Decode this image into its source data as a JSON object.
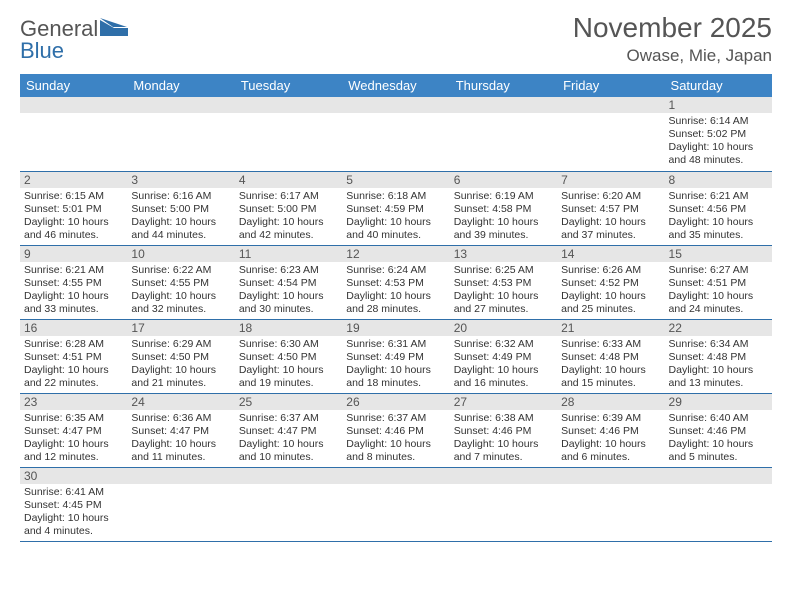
{
  "logo": {
    "word1": "General",
    "word2": "Blue",
    "flag_color": "#2f6fa9"
  },
  "header": {
    "title": "November 2025",
    "location": "Owase, Mie, Japan"
  },
  "colors": {
    "header_bg": "#3d84c5",
    "divider": "#2f6fa9",
    "daynum_bg": "#e6e6e6"
  },
  "weekdays": [
    "Sunday",
    "Monday",
    "Tuesday",
    "Wednesday",
    "Thursday",
    "Friday",
    "Saturday"
  ],
  "weeks": [
    [
      {
        "blank": true
      },
      {
        "blank": true
      },
      {
        "blank": true
      },
      {
        "blank": true
      },
      {
        "blank": true
      },
      {
        "blank": true
      },
      {
        "day": 1,
        "sunrise": "Sunrise: 6:14 AM",
        "sunset": "Sunset: 5:02 PM",
        "daylight": "Daylight: 10 hours and 48 minutes."
      }
    ],
    [
      {
        "day": 2,
        "sunrise": "Sunrise: 6:15 AM",
        "sunset": "Sunset: 5:01 PM",
        "daylight": "Daylight: 10 hours and 46 minutes."
      },
      {
        "day": 3,
        "sunrise": "Sunrise: 6:16 AM",
        "sunset": "Sunset: 5:00 PM",
        "daylight": "Daylight: 10 hours and 44 minutes."
      },
      {
        "day": 4,
        "sunrise": "Sunrise: 6:17 AM",
        "sunset": "Sunset: 5:00 PM",
        "daylight": "Daylight: 10 hours and 42 minutes."
      },
      {
        "day": 5,
        "sunrise": "Sunrise: 6:18 AM",
        "sunset": "Sunset: 4:59 PM",
        "daylight": "Daylight: 10 hours and 40 minutes."
      },
      {
        "day": 6,
        "sunrise": "Sunrise: 6:19 AM",
        "sunset": "Sunset: 4:58 PM",
        "daylight": "Daylight: 10 hours and 39 minutes."
      },
      {
        "day": 7,
        "sunrise": "Sunrise: 6:20 AM",
        "sunset": "Sunset: 4:57 PM",
        "daylight": "Daylight: 10 hours and 37 minutes."
      },
      {
        "day": 8,
        "sunrise": "Sunrise: 6:21 AM",
        "sunset": "Sunset: 4:56 PM",
        "daylight": "Daylight: 10 hours and 35 minutes."
      }
    ],
    [
      {
        "day": 9,
        "sunrise": "Sunrise: 6:21 AM",
        "sunset": "Sunset: 4:55 PM",
        "daylight": "Daylight: 10 hours and 33 minutes."
      },
      {
        "day": 10,
        "sunrise": "Sunrise: 6:22 AM",
        "sunset": "Sunset: 4:55 PM",
        "daylight": "Daylight: 10 hours and 32 minutes."
      },
      {
        "day": 11,
        "sunrise": "Sunrise: 6:23 AM",
        "sunset": "Sunset: 4:54 PM",
        "daylight": "Daylight: 10 hours and 30 minutes."
      },
      {
        "day": 12,
        "sunrise": "Sunrise: 6:24 AM",
        "sunset": "Sunset: 4:53 PM",
        "daylight": "Daylight: 10 hours and 28 minutes."
      },
      {
        "day": 13,
        "sunrise": "Sunrise: 6:25 AM",
        "sunset": "Sunset: 4:53 PM",
        "daylight": "Daylight: 10 hours and 27 minutes."
      },
      {
        "day": 14,
        "sunrise": "Sunrise: 6:26 AM",
        "sunset": "Sunset: 4:52 PM",
        "daylight": "Daylight: 10 hours and 25 minutes."
      },
      {
        "day": 15,
        "sunrise": "Sunrise: 6:27 AM",
        "sunset": "Sunset: 4:51 PM",
        "daylight": "Daylight: 10 hours and 24 minutes."
      }
    ],
    [
      {
        "day": 16,
        "sunrise": "Sunrise: 6:28 AM",
        "sunset": "Sunset: 4:51 PM",
        "daylight": "Daylight: 10 hours and 22 minutes."
      },
      {
        "day": 17,
        "sunrise": "Sunrise: 6:29 AM",
        "sunset": "Sunset: 4:50 PM",
        "daylight": "Daylight: 10 hours and 21 minutes."
      },
      {
        "day": 18,
        "sunrise": "Sunrise: 6:30 AM",
        "sunset": "Sunset: 4:50 PM",
        "daylight": "Daylight: 10 hours and 19 minutes."
      },
      {
        "day": 19,
        "sunrise": "Sunrise: 6:31 AM",
        "sunset": "Sunset: 4:49 PM",
        "daylight": "Daylight: 10 hours and 18 minutes."
      },
      {
        "day": 20,
        "sunrise": "Sunrise: 6:32 AM",
        "sunset": "Sunset: 4:49 PM",
        "daylight": "Daylight: 10 hours and 16 minutes."
      },
      {
        "day": 21,
        "sunrise": "Sunrise: 6:33 AM",
        "sunset": "Sunset: 4:48 PM",
        "daylight": "Daylight: 10 hours and 15 minutes."
      },
      {
        "day": 22,
        "sunrise": "Sunrise: 6:34 AM",
        "sunset": "Sunset: 4:48 PM",
        "daylight": "Daylight: 10 hours and 13 minutes."
      }
    ],
    [
      {
        "day": 23,
        "sunrise": "Sunrise: 6:35 AM",
        "sunset": "Sunset: 4:47 PM",
        "daylight": "Daylight: 10 hours and 12 minutes."
      },
      {
        "day": 24,
        "sunrise": "Sunrise: 6:36 AM",
        "sunset": "Sunset: 4:47 PM",
        "daylight": "Daylight: 10 hours and 11 minutes."
      },
      {
        "day": 25,
        "sunrise": "Sunrise: 6:37 AM",
        "sunset": "Sunset: 4:47 PM",
        "daylight": "Daylight: 10 hours and 10 minutes."
      },
      {
        "day": 26,
        "sunrise": "Sunrise: 6:37 AM",
        "sunset": "Sunset: 4:46 PM",
        "daylight": "Daylight: 10 hours and 8 minutes."
      },
      {
        "day": 27,
        "sunrise": "Sunrise: 6:38 AM",
        "sunset": "Sunset: 4:46 PM",
        "daylight": "Daylight: 10 hours and 7 minutes."
      },
      {
        "day": 28,
        "sunrise": "Sunrise: 6:39 AM",
        "sunset": "Sunset: 4:46 PM",
        "daylight": "Daylight: 10 hours and 6 minutes."
      },
      {
        "day": 29,
        "sunrise": "Sunrise: 6:40 AM",
        "sunset": "Sunset: 4:46 PM",
        "daylight": "Daylight: 10 hours and 5 minutes."
      }
    ],
    [
      {
        "day": 30,
        "sunrise": "Sunrise: 6:41 AM",
        "sunset": "Sunset: 4:45 PM",
        "daylight": "Daylight: 10 hours and 4 minutes."
      },
      {
        "blank": true
      },
      {
        "blank": true
      },
      {
        "blank": true
      },
      {
        "blank": true
      },
      {
        "blank": true
      },
      {
        "blank": true
      }
    ]
  ]
}
